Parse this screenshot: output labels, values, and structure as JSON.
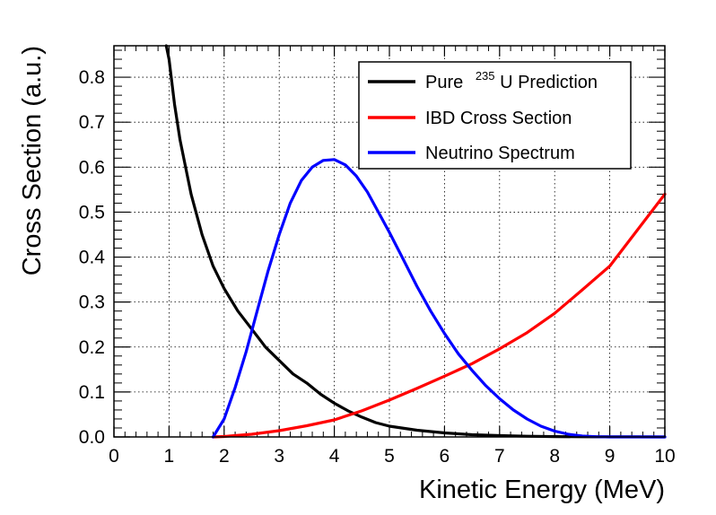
{
  "chart_data": {
    "type": "line",
    "title": "",
    "xlabel": "Kinetic Energy (MeV)",
    "ylabel": "Cross Section (a.u.)",
    "xlim": [
      0,
      10
    ],
    "ylim": [
      0,
      0.87
    ],
    "grid": true,
    "grid_style": "dotted",
    "legend_position": "top-right",
    "x_ticks": [
      "0",
      "1",
      "2",
      "3",
      "4",
      "5",
      "6",
      "7",
      "8",
      "9",
      "10"
    ],
    "y_ticks": [
      "0.0",
      "0.1",
      "0.2",
      "0.3",
      "0.4",
      "0.5",
      "0.6",
      "0.7",
      "0.8"
    ],
    "series": [
      {
        "name": "Pure 235U Prediction",
        "legend_prefix": "Pure",
        "legend_superscript": "235",
        "legend_suffix": "U Prediction",
        "color": "#000000",
        "x": [
          0.95,
          1.0,
          1.1,
          1.2,
          1.4,
          1.6,
          1.8,
          2.0,
          2.25,
          2.5,
          2.75,
          3.0,
          3.25,
          3.5,
          3.75,
          4.0,
          4.25,
          4.5,
          4.75,
          5.0,
          5.5,
          6.0,
          6.5,
          7.0,
          7.5,
          8.0,
          8.5,
          9.0,
          9.5,
          10.0
        ],
        "y": [
          0.87,
          0.84,
          0.74,
          0.66,
          0.54,
          0.45,
          0.38,
          0.33,
          0.28,
          0.24,
          0.2,
          0.17,
          0.14,
          0.12,
          0.095,
          0.075,
          0.058,
          0.044,
          0.032,
          0.024,
          0.015,
          0.009,
          0.005,
          0.003,
          0.0015,
          0.0008,
          0.0004,
          0.0002,
          0.0001,
          0.0
        ]
      },
      {
        "name": "IBD Cross Section",
        "color": "#ff0000",
        "x": [
          1.8,
          2.0,
          2.5,
          3.0,
          3.5,
          4.0,
          4.5,
          5.0,
          5.5,
          6.0,
          6.5,
          7.0,
          7.5,
          8.0,
          8.5,
          9.0,
          9.5,
          10.0
        ],
        "y": [
          0.0,
          0.001,
          0.006,
          0.014,
          0.025,
          0.038,
          0.058,
          0.082,
          0.108,
          0.135,
          0.163,
          0.196,
          0.232,
          0.275,
          0.327,
          0.38,
          0.46,
          0.54
        ]
      },
      {
        "name": "Neutrino Spectrum",
        "color": "#0000ff",
        "x": [
          1.8,
          2.0,
          2.2,
          2.4,
          2.6,
          2.8,
          3.0,
          3.2,
          3.4,
          3.6,
          3.8,
          4.0,
          4.2,
          4.4,
          4.6,
          4.8,
          5.0,
          5.25,
          5.5,
          5.75,
          6.0,
          6.25,
          6.5,
          6.75,
          7.0,
          7.25,
          7.5,
          7.75,
          8.0,
          8.25,
          8.5,
          8.75,
          9.0,
          9.5,
          10.0
        ],
        "y": [
          0.0,
          0.04,
          0.11,
          0.19,
          0.28,
          0.37,
          0.45,
          0.52,
          0.57,
          0.6,
          0.615,
          0.617,
          0.605,
          0.58,
          0.545,
          0.5,
          0.455,
          0.395,
          0.335,
          0.28,
          0.23,
          0.185,
          0.148,
          0.114,
          0.085,
          0.06,
          0.04,
          0.024,
          0.013,
          0.006,
          0.002,
          0.0005,
          0.0,
          0.0,
          0.0
        ]
      }
    ]
  }
}
